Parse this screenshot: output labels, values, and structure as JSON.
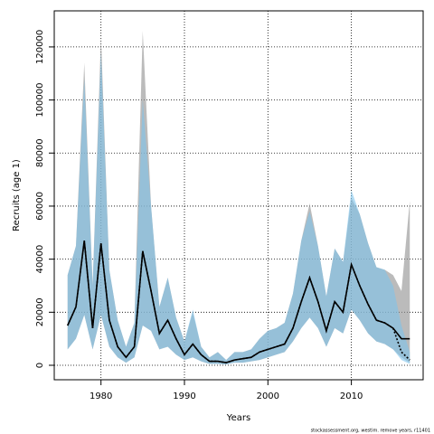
{
  "chart_data": {
    "type": "band-line",
    "xlabel": "Years",
    "ylabel": "Recruits (age 1)",
    "note": "stockassessment.org, westim. remove years, r11401",
    "x": [
      1976,
      1977,
      1978,
      1979,
      1980,
      1981,
      1982,
      1983,
      1984,
      1985,
      1986,
      1987,
      1988,
      1989,
      1990,
      1991,
      1992,
      1993,
      1994,
      1995,
      1996,
      1997,
      1998,
      1999,
      2000,
      2001,
      2002,
      2003,
      2004,
      2005,
      2006,
      2007,
      2008,
      2009,
      2010,
      2011,
      2012,
      2013,
      2014,
      2015,
      2016,
      2017
    ],
    "series": [
      {
        "color": "#000000",
        "band_color": "rgba(150,150,150,0.65)",
        "line_style": "solid",
        "values": [
          15000,
          22000,
          47000,
          14000,
          46000,
          17000,
          7000,
          3000,
          7000,
          43000,
          28000,
          12000,
          17000,
          10000,
          4000,
          8000,
          4000,
          1500,
          1500,
          1000,
          2000,
          2500,
          3000,
          5000,
          6000,
          7000,
          8000,
          14000,
          24000,
          33000,
          24000,
          13000,
          24000,
          20000,
          38000,
          30000,
          23000,
          17000,
          16000,
          14000,
          10000,
          10000
        ],
        "upper": [
          34000,
          45000,
          114000,
          30000,
          124000,
          36000,
          17000,
          7000,
          16000,
          126000,
          60000,
          22000,
          33000,
          18000,
          9000,
          20000,
          7000,
          3000,
          5000,
          2000,
          5000,
          5000,
          6000,
          10000,
          13000,
          14000,
          16000,
          27000,
          47000,
          61000,
          45000,
          26000,
          44000,
          39000,
          63000,
          57000,
          46000,
          37000,
          36000,
          34000,
          28000,
          62000
        ],
        "lower": [
          6000,
          10000,
          19000,
          6000,
          19000,
          7000,
          3000,
          1000,
          3000,
          15000,
          13000,
          6000,
          7000,
          4000,
          2000,
          3000,
          1500,
          500,
          500,
          300,
          1000,
          1000,
          1500,
          2000,
          3000,
          4000,
          5000,
          9000,
          14000,
          18000,
          14000,
          7000,
          14000,
          12000,
          21000,
          17000,
          12000,
          9000,
          8000,
          6000,
          3000,
          1000
        ]
      },
      {
        "color": "#000000",
        "band_color": "rgba(125,195,235,0.6)",
        "line_style": "dotted",
        "values": [
          15000,
          22000,
          47000,
          14000,
          46000,
          17000,
          7000,
          3000,
          7000,
          43000,
          28000,
          12000,
          17000,
          10000,
          4000,
          8000,
          4000,
          1500,
          1500,
          1000,
          2000,
          2500,
          3000,
          5000,
          6000,
          7000,
          8000,
          14000,
          24000,
          33000,
          24000,
          13000,
          24000,
          20000,
          38000,
          30000,
          23000,
          17000,
          16000,
          14000,
          5000,
          2000
        ],
        "upper": [
          34000,
          45000,
          108000,
          30000,
          118000,
          36000,
          17000,
          7000,
          16000,
          100000,
          60000,
          22000,
          33000,
          18000,
          9000,
          21000,
          7000,
          3000,
          5000,
          2000,
          5000,
          5000,
          6000,
          10000,
          13000,
          14000,
          16000,
          27000,
          47000,
          58000,
          45000,
          26000,
          44000,
          39000,
          66000,
          57000,
          46000,
          37000,
          36000,
          30000,
          15000,
          5000
        ],
        "lower": [
          6000,
          10000,
          19000,
          6000,
          19000,
          7000,
          3000,
          1000,
          3000,
          15000,
          13000,
          6000,
          7000,
          4000,
          2000,
          3000,
          1500,
          500,
          500,
          300,
          1000,
          1000,
          1500,
          2000,
          3000,
          4000,
          5000,
          9000,
          14000,
          18000,
          14000,
          7000,
          14000,
          12000,
          21000,
          17000,
          12000,
          9000,
          8000,
          6000,
          2000,
          500
        ]
      }
    ],
    "xlim": [
      1974.4,
      2018.6
    ],
    "ylim": [
      -5450,
      133600
    ],
    "xticks": [
      1980,
      1990,
      2000,
      2010
    ],
    "yticks": [
      0,
      20000,
      40000,
      60000,
      80000,
      100000,
      120000
    ],
    "grid": true
  }
}
